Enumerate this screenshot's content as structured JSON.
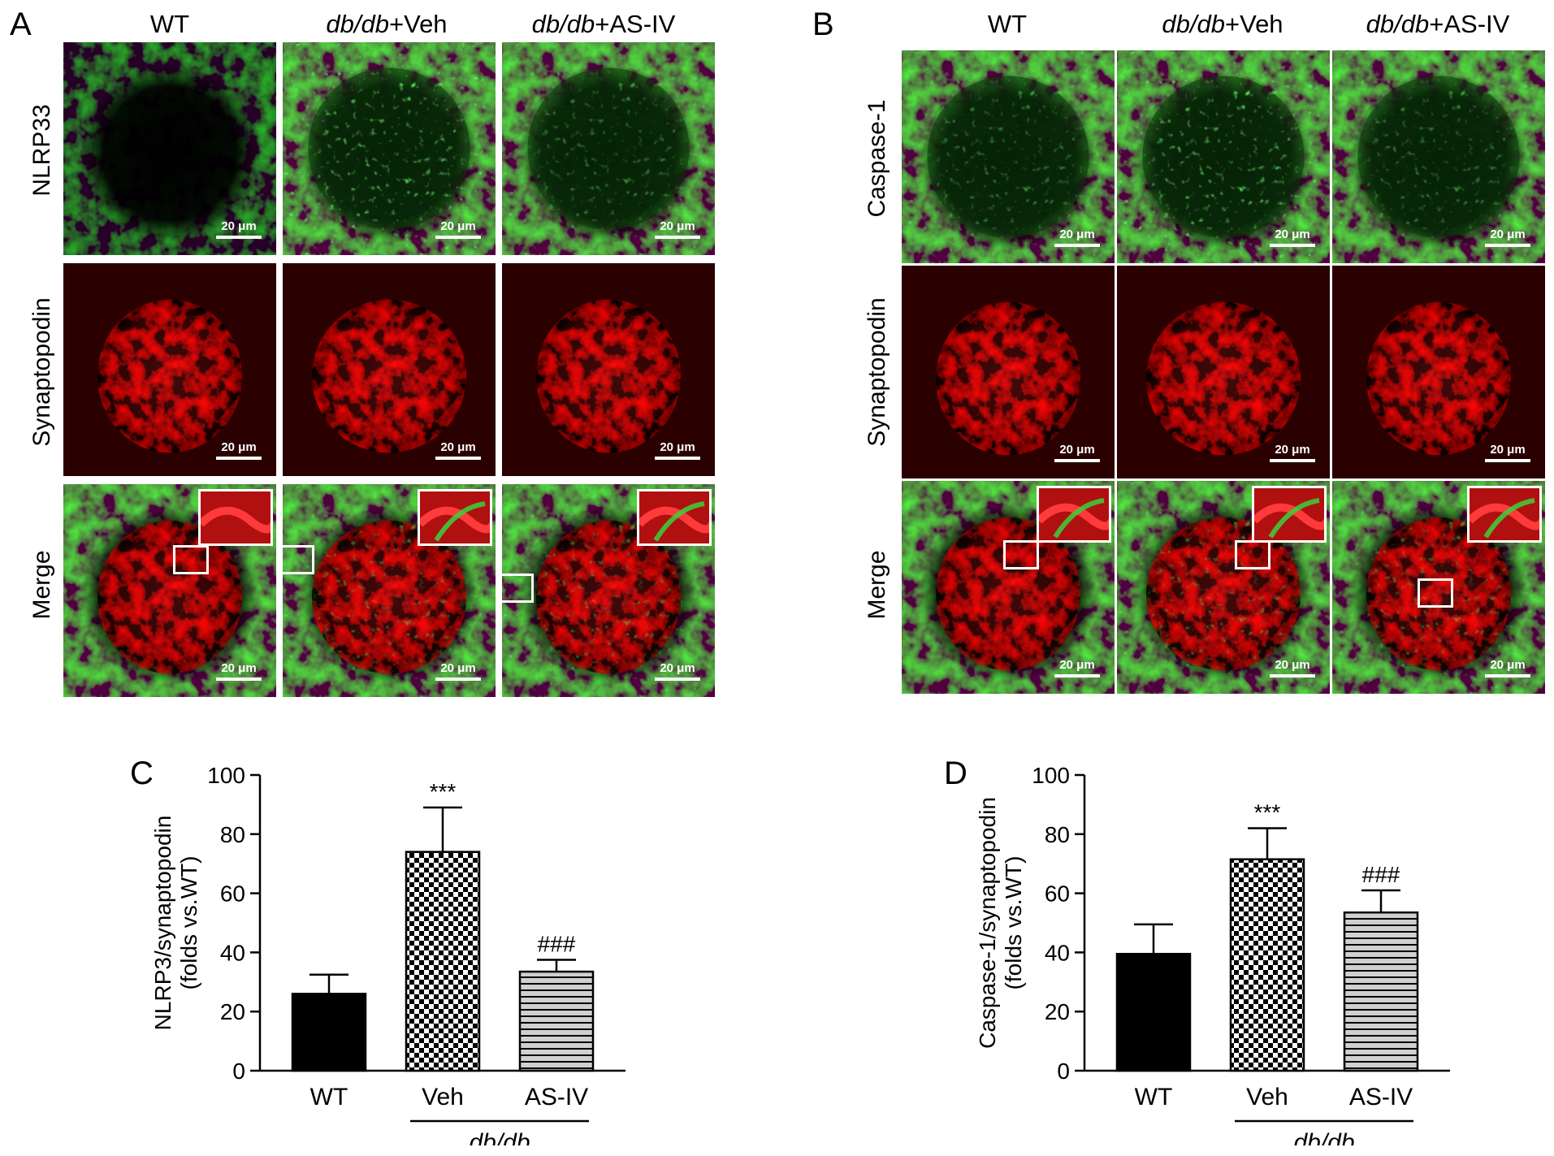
{
  "panels": {
    "A": "A",
    "B": "B",
    "C": "C",
    "D": "D"
  },
  "micrographs": {
    "column_headers": [
      {
        "prefix": "WT",
        "italic": "",
        "suffix": ""
      },
      {
        "prefix": "",
        "italic": "db/db",
        "suffix": "+Veh"
      },
      {
        "prefix": "",
        "italic": "db/db",
        "suffix": "+AS-IV"
      }
    ],
    "rows_A": [
      "NLRP33",
      "Synaptopodin",
      "Merge"
    ],
    "rows_B": [
      "Caspase-1",
      "Synaptopodin",
      "Merge"
    ],
    "scale_bar": "20 μm",
    "colors": {
      "green_channel": "#1fbf1f",
      "red_channel": "#e01010",
      "background": "#000000"
    }
  },
  "chart_data": [
    {
      "type": "bar",
      "panel": "C",
      "categories": [
        "WT",
        "Veh",
        "AS-IV"
      ],
      "values": [
        26,
        74,
        33.5
      ],
      "errors": [
        6.5,
        15,
        4
      ],
      "annotations": [
        "",
        "***",
        "###"
      ],
      "patterns": [
        "solid-black",
        "checker",
        "horizontal-stripes"
      ],
      "ylabel_line1": "NLRP3/synaptopodin",
      "ylabel_line2": "(folds vs.WT)",
      "group_label": "db/db",
      "ylim": [
        0,
        100
      ],
      "yticks": [
        "0",
        "20",
        "40",
        "60",
        "80",
        "100"
      ]
    },
    {
      "type": "bar",
      "panel": "D",
      "categories": [
        "WT",
        "Veh",
        "AS-IV"
      ],
      "values": [
        39.5,
        71.5,
        53.5
      ],
      "errors": [
        10,
        10.5,
        7.5
      ],
      "annotations": [
        "",
        "***",
        "###"
      ],
      "patterns": [
        "solid-black",
        "checker",
        "horizontal-stripes"
      ],
      "ylabel_line1": "Caspase-1/synaptopodin",
      "ylabel_line2": "(folds vs.WT)",
      "group_label": "db/db",
      "ylim": [
        0,
        100
      ],
      "yticks": [
        "0",
        "20",
        "40",
        "60",
        "80",
        "100"
      ]
    }
  ]
}
